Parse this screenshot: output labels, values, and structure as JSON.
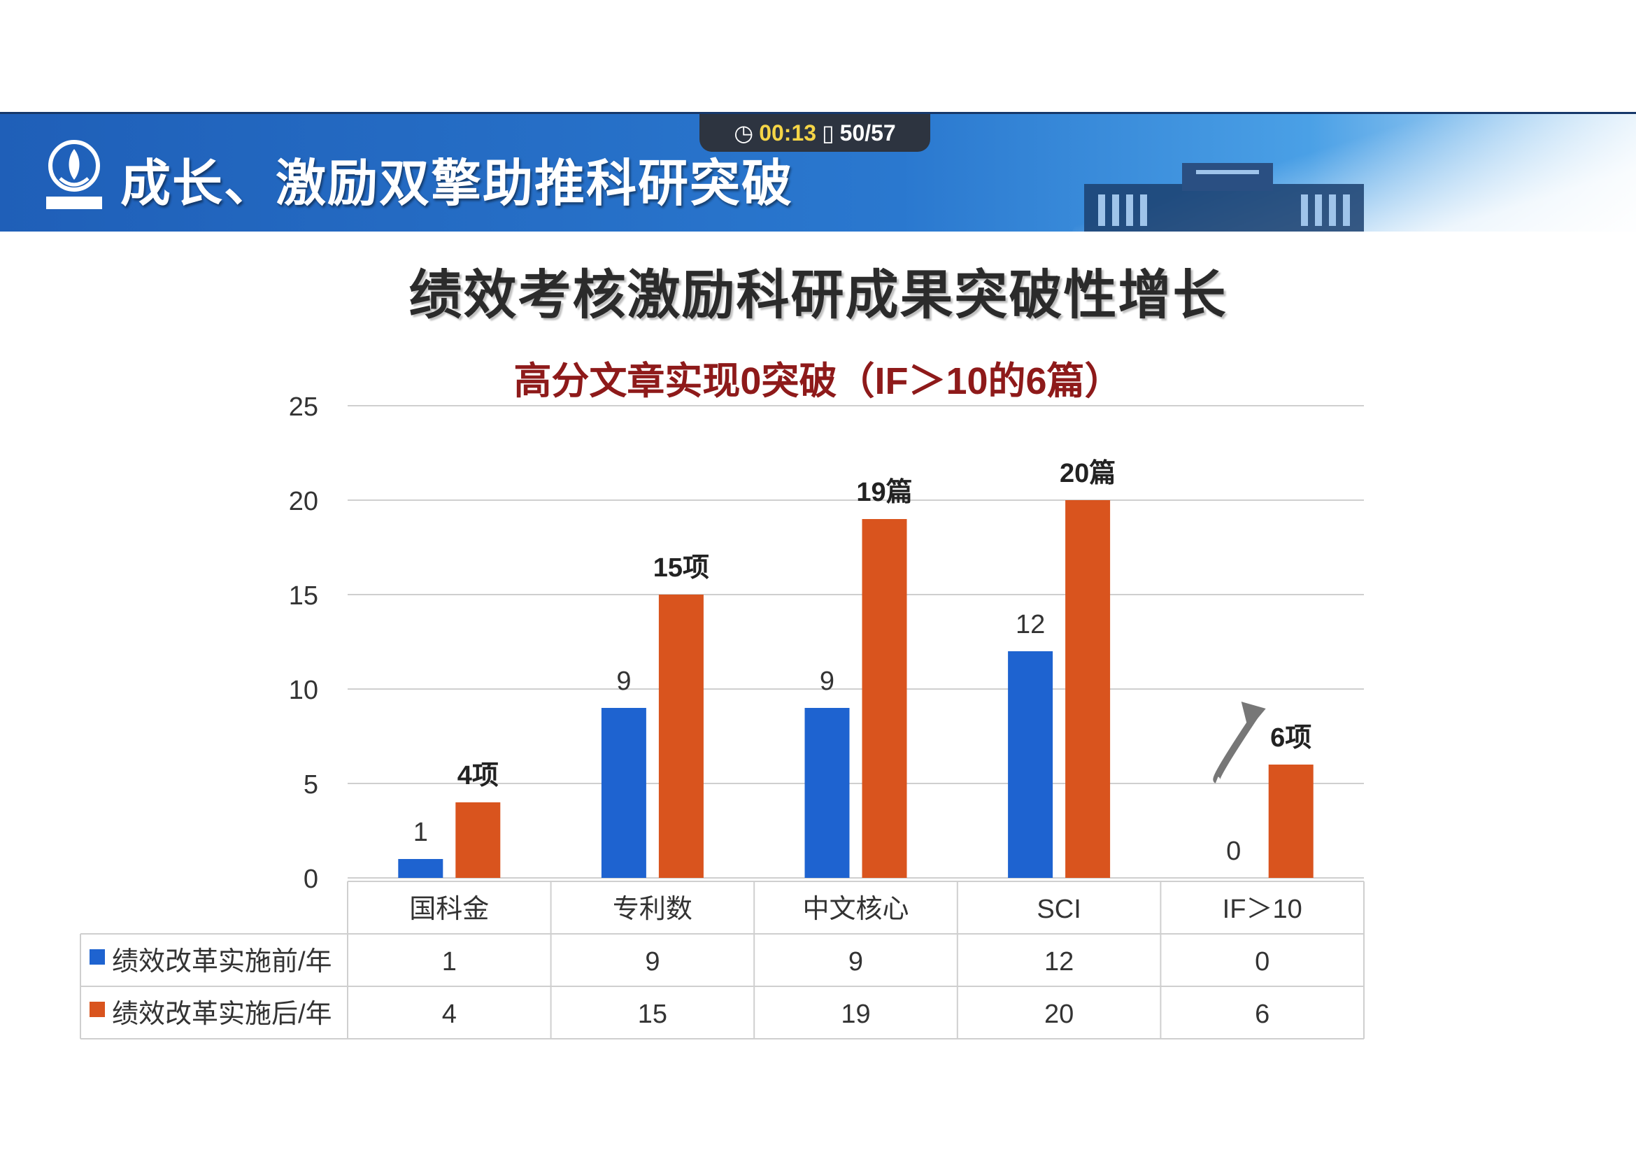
{
  "banner": {
    "title": "成长、激励双擎助推科研突破",
    "player_time": "00:13",
    "player_page": "50/57"
  },
  "colors": {
    "before": "#1e63d0",
    "after": "#d9541e",
    "banner": "#1f5fb8",
    "subtitle": "#8e1a1a"
  },
  "chart_data": {
    "type": "bar",
    "title": "绩效考核激励科研成果突破性增长",
    "subtitle": "高分文章实现0突破（IF＞10的6篇）",
    "categories": [
      "国科金",
      "专利数",
      "中文核心",
      "SCI",
      "IF＞10"
    ],
    "series": [
      {
        "name": "绩效改革实施前/年",
        "values": [
          1,
          9,
          9,
          12,
          0
        ],
        "labels": [
          "1",
          "9",
          "9",
          "12",
          "0"
        ]
      },
      {
        "name": "绩效改革实施后/年",
        "values": [
          4,
          15,
          19,
          20,
          6
        ],
        "labels": [
          "4项",
          "15项",
          "19篇",
          "20篇",
          "6项"
        ]
      }
    ],
    "table_values": {
      "before": [
        "1",
        "9",
        "9",
        "12",
        "0"
      ],
      "after": [
        "4",
        "15",
        "19",
        "20",
        "6"
      ]
    },
    "yticks": [
      "0",
      "5",
      "10",
      "15",
      "20",
      "25"
    ],
    "ylim": [
      0,
      25
    ],
    "grid": true,
    "legend": "data-table"
  }
}
